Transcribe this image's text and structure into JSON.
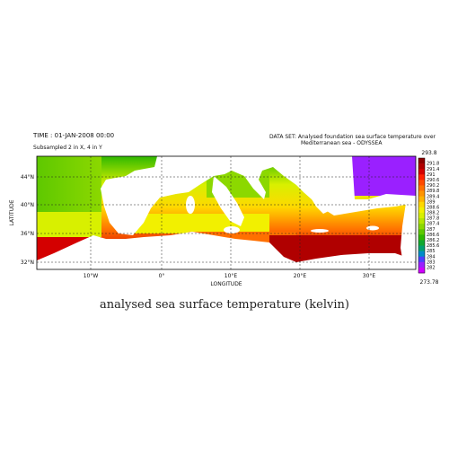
{
  "header": {
    "time": "TIME : 01-JAN-2008 00:00",
    "subsample": "Subsampled 2 in X, 4 in Y",
    "dataset_line1": "DATA SET:  Analysed foundation sea surface temperature over",
    "dataset_line2": "Mediterranean sea  -  ODYSSEA"
  },
  "map": {
    "xlabel": "LONGITUDE",
    "ylabel": "LATITUDE",
    "lon_ticks": [
      "10°W",
      "0°",
      "10°E",
      "20°E",
      "30°E"
    ],
    "lat_ticks": [
      "44°N",
      "40°N",
      "36°N",
      "32°N"
    ],
    "land_color": "#ffffff",
    "nodata_color": "#ffffff"
  },
  "colorbar": {
    "top_value": "293.8",
    "bottom_value": "273.78",
    "labels": [
      "291.8",
      "291.4",
      "291",
      "290.6",
      "290.2",
      "289.8",
      "289.4",
      "289",
      "288.6",
      "288.2",
      "287.8",
      "287.4",
      "287",
      "286.6",
      "286.2",
      "285.6",
      "285",
      "284",
      "283",
      "282"
    ],
    "colors": [
      "#8b0000",
      "#b00000",
      "#d40000",
      "#ff2000",
      "#ff4a00",
      "#ff7000",
      "#ff9400",
      "#ffb400",
      "#ffd800",
      "#f2f000",
      "#d8f000",
      "#b4e600",
      "#8cd800",
      "#5ec800",
      "#2fb800",
      "#10a830",
      "#00a070",
      "#008cc8",
      "#4a40ff",
      "#9a20ff",
      "#d000ff"
    ]
  },
  "caption": "analysed sea surface temperature (kelvin)"
}
